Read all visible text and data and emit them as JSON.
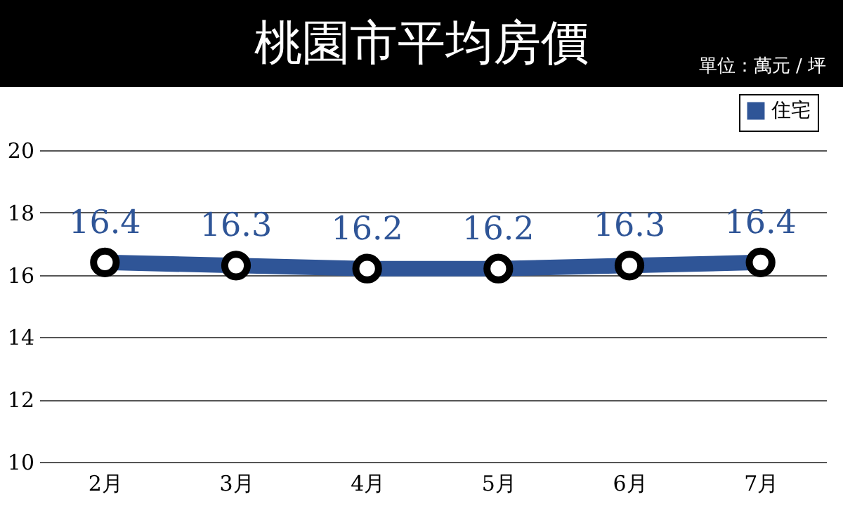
{
  "chart_data": {
    "type": "line",
    "title": "桃園市平均房價",
    "subtitle": "單位：萬元 / 坪",
    "categories": [
      "2月",
      "3月",
      "4月",
      "5月",
      "6月",
      "7月"
    ],
    "series": [
      {
        "name": "住宅",
        "color": "#2f5597",
        "values": [
          16.4,
          16.3,
          16.2,
          16.2,
          16.3,
          16.4
        ]
      }
    ],
    "ylim": [
      10,
      20
    ],
    "yticks": [
      10,
      12,
      14,
      16,
      18,
      20
    ],
    "grid": "y",
    "legend": "top right",
    "marker": "circle",
    "data_labels": true
  }
}
